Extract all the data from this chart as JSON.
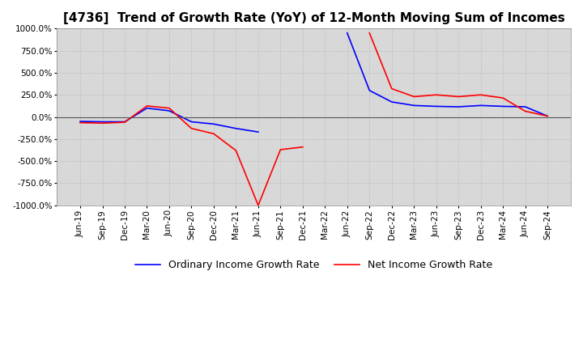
{
  "title": "[4736]  Trend of Growth Rate (YoY) of 12-Month Moving Sum of Incomes",
  "title_fontsize": 11,
  "ylim": [
    -1000,
    1000
  ],
  "yticks": [
    -1000,
    -750,
    -500,
    -250,
    0,
    250,
    500,
    750,
    1000
  ],
  "ytick_labels": [
    "-1000.0%",
    "-750.0%",
    "-500.0%",
    "-250.0%",
    "0.0%",
    "250.0%",
    "500.0%",
    "750.0%",
    "1000.0%"
  ],
  "bg_color": "#ffffff",
  "plot_bg_color": "#d8d8d8",
  "grid_color": "#aaaaaa",
  "legend_entries": [
    "Ordinary Income Growth Rate",
    "Net Income Growth Rate"
  ],
  "legend_colors": [
    "#0000ff",
    "#ff0000"
  ],
  "dates": [
    "Jun-19",
    "Sep-19",
    "Dec-19",
    "Mar-20",
    "Jun-20",
    "Sep-20",
    "Dec-20",
    "Mar-21",
    "Jun-21",
    "Sep-21",
    "Dec-21",
    "Mar-22",
    "Jun-22",
    "Sep-22",
    "Dec-22",
    "Mar-23",
    "Jun-23",
    "Sep-23",
    "Dec-23",
    "Mar-24",
    "Jun-24",
    "Sep-24"
  ],
  "ordinary_income": [
    -50,
    -55,
    -55,
    100,
    70,
    -55,
    -80,
    -130,
    -170,
    null,
    null,
    null,
    950,
    300,
    170,
    130,
    120,
    115,
    130,
    120,
    115,
    10
  ],
  "net_income": [
    -65,
    -70,
    -60,
    125,
    100,
    -130,
    -190,
    -380,
    -1000,
    -370,
    -340,
    null,
    null,
    950,
    320,
    230,
    250,
    230,
    250,
    215,
    65,
    10
  ],
  "line_width": 1.2
}
